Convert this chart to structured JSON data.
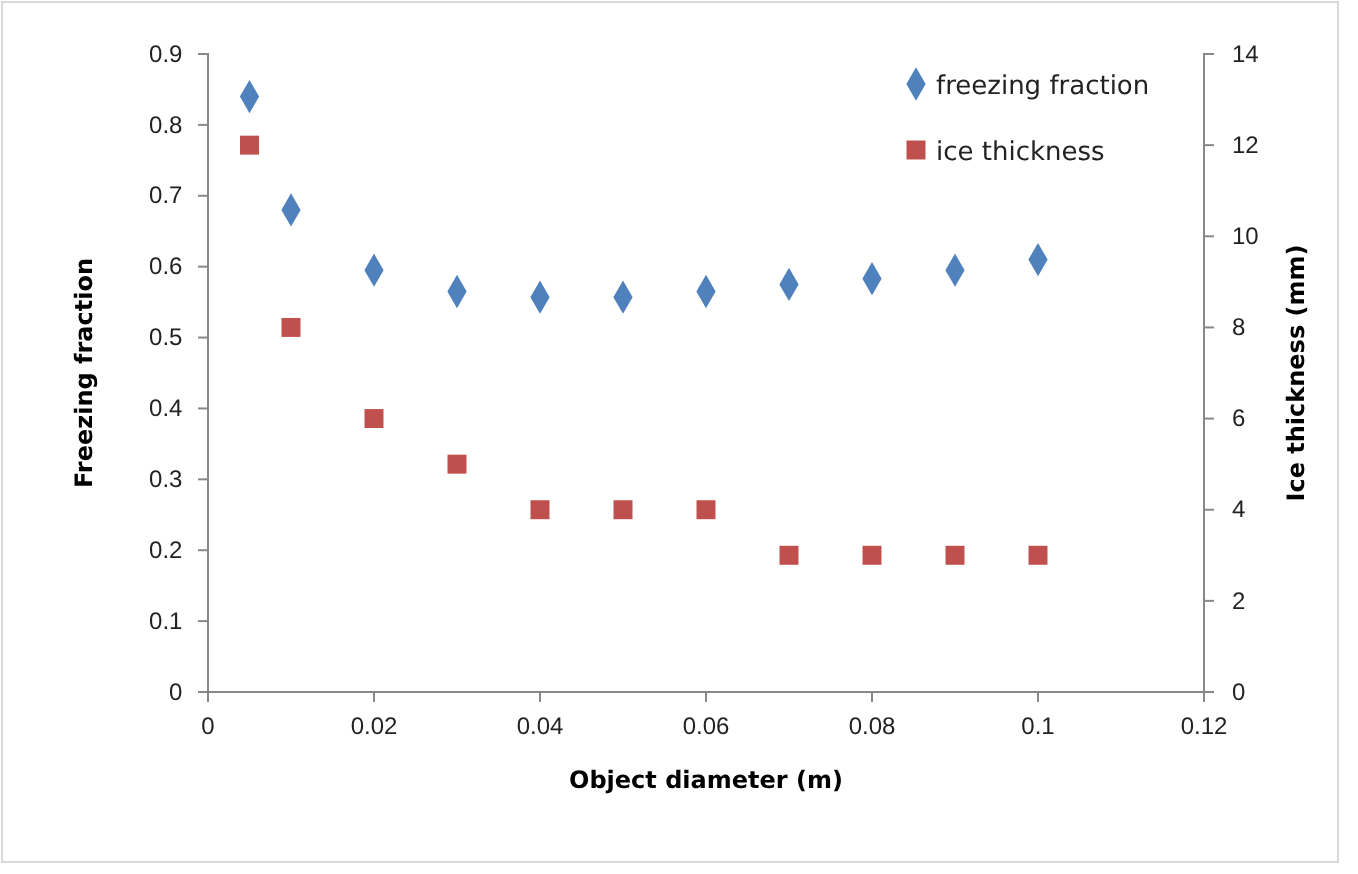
{
  "chart_data": {
    "type": "scatter",
    "xlabel": "Object diameter (m)",
    "ylabel": "Freezing fraction",
    "y2label": "Ice thickness (mm)",
    "x": [
      0.005,
      0.01,
      0.02,
      0.03,
      0.04,
      0.05,
      0.06,
      0.07,
      0.08,
      0.09,
      0.1
    ],
    "series": [
      {
        "name": "freezing fraction",
        "color": "#4f81bd",
        "marker": "diamond",
        "values": [
          0.84,
          0.68,
          0.595,
          0.565,
          0.557,
          0.557,
          0.565,
          0.575,
          0.583,
          0.595,
          0.61
        ]
      },
      {
        "name": "ice thickness",
        "color": "#c0504d",
        "marker": "square",
        "axis": "y2",
        "values": [
          12,
          8,
          6,
          5,
          4,
          4,
          4,
          3,
          3,
          3,
          3
        ]
      }
    ],
    "xlim": [
      0,
      0.12
    ],
    "xticks": [
      0,
      0.02,
      0.04,
      0.06,
      0.08,
      0.1,
      0.12
    ],
    "ylim": [
      0,
      0.9
    ],
    "yticks": [
      0,
      0.1,
      0.2,
      0.3,
      0.4,
      0.5,
      0.6,
      0.7,
      0.8,
      0.9
    ],
    "y2lim": [
      0,
      14
    ],
    "y2ticks": [
      0,
      2,
      4,
      6,
      8,
      10,
      12,
      14
    ],
    "grid": false,
    "legend": "top right"
  }
}
